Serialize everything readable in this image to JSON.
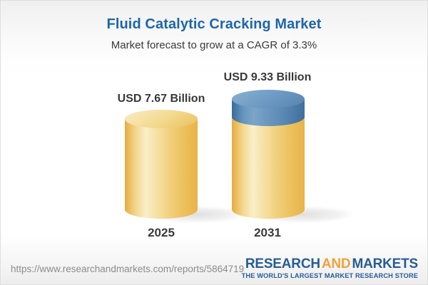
{
  "header": {
    "title": "Fluid Catalytic Cracking Market",
    "subtitle": "Market forecast to grow at a CAGR of 3.3%"
  },
  "chart_data": {
    "type": "bar",
    "subtype": "3d-cylinder",
    "title": "Fluid Catalytic Cracking Market",
    "subtitle": "Market forecast to grow at a CAGR of 3.3%",
    "categories": [
      "2025",
      "2031"
    ],
    "values": [
      7.67,
      9.33
    ],
    "value_labels": [
      "USD 7.67 Billion",
      "USD 9.33 Billion"
    ],
    "unit": "USD Billion",
    "cagr_percent": 3.3,
    "legend": "none",
    "grid": false,
    "axes_shown": false,
    "colors": {
      "cylinder_body": "#f0c568",
      "growth_cap": "#4d80b0",
      "title_text": "#1d66a9",
      "label_text": "#3a3a3a"
    }
  },
  "footer": {
    "url": "https://www.researchandmarkets.com/reports/5864719",
    "logo": {
      "research": "RESEARCH",
      "and": "AND",
      "markets": "MARKETS",
      "tagline": "THE WORLD'S LARGEST MARKET RESEARCH STORE"
    }
  }
}
